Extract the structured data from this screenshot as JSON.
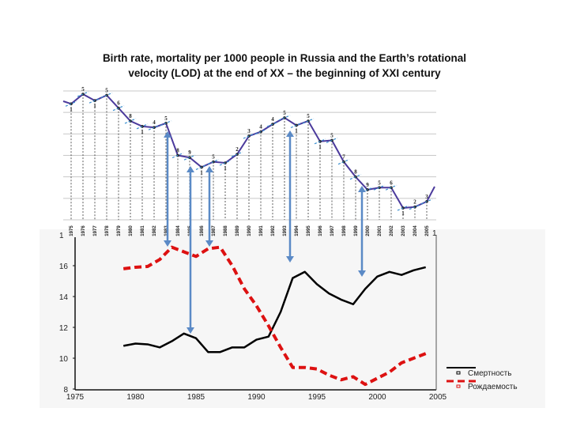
{
  "title": {
    "line1": "Birth rate, mortality per 1000 people in Russia and the Earth’s rotational",
    "line2": "velocity (LOD) at the end of XX – the beginning of XXI century"
  },
  "chart_data": [
    {
      "type": "line",
      "panel": "top",
      "x": [
        1975,
        1976,
        1977,
        1978,
        1979,
        1980,
        1981,
        1982,
        1983,
        1984,
        1985,
        1986,
        1987,
        1988,
        1989,
        1990,
        1991,
        1992,
        1993,
        1994,
        1995,
        1996,
        1997,
        1998,
        1999,
        2000,
        2001,
        2002,
        2003,
        2004,
        2005
      ],
      "x_tick_labels": [
        "1975",
        "1976",
        "1977",
        "1978",
        "1979",
        "1980",
        "1981",
        "1982",
        "1983",
        "1984",
        "1985",
        "1986",
        "1987",
        "1988",
        "1989",
        "1990",
        "1991",
        "1992",
        "1993",
        "1994",
        "1995",
        "1996",
        "1997",
        "1998",
        "1999",
        "2000",
        "2001",
        "2002",
        "2003",
        "2004",
        "2005"
      ],
      "values": [
        5.4,
        5.85,
        5.55,
        5.8,
        5.2,
        4.6,
        4.35,
        4.3,
        4.5,
        3.0,
        2.9,
        2.45,
        2.7,
        2.65,
        3.05,
        3.9,
        4.1,
        4.45,
        4.75,
        4.4,
        4.6,
        3.65,
        3.7,
        2.7,
        2.0,
        1.4,
        1.5,
        1.5,
        0.55,
        0.6,
        0.85
      ],
      "point_labels": [
        "1",
        "5",
        "1",
        "5",
        "6",
        "8",
        "1",
        "4",
        "5",
        "8",
        "9",
        "1",
        "5",
        "1",
        "2",
        "3",
        "4",
        "4",
        "5",
        "1",
        "5",
        "1",
        "5",
        "7",
        "8",
        "9",
        "5",
        "6",
        "1",
        "2",
        "3"
      ],
      "ylim": [
        0,
        6
      ],
      "grid": true,
      "color": "#4b3a9c",
      "marker_color": "#3a8fd0"
    },
    {
      "type": "line",
      "panel": "bottom",
      "xlim": [
        1975,
        2005
      ],
      "ylim": [
        8,
        17.5
      ],
      "x_ticks": [
        "1975",
        "1980",
        "1985",
        "1990",
        "1995",
        "2000",
        "2005"
      ],
      "y_ticks": [
        "8",
        "10",
        "12",
        "14",
        "16"
      ],
      "top_left_label": "1",
      "top_right_label": "1",
      "x": [
        1979,
        1980,
        1981,
        1982,
        1983,
        1984,
        1985,
        1986,
        1987,
        1988,
        1989,
        1990,
        1991,
        1992,
        1993,
        1994,
        1995,
        1996,
        1997,
        1998,
        1999,
        2000,
        2001,
        2002,
        2003,
        2004
      ],
      "series": [
        {
          "name": "Смертность",
          "color": "#000000",
          "style": "solid",
          "values": [
            10.8,
            10.95,
            10.9,
            10.7,
            11.1,
            11.6,
            11.3,
            10.4,
            10.4,
            10.7,
            10.7,
            11.2,
            11.4,
            13.0,
            15.2,
            15.6,
            14.8,
            14.2,
            13.8,
            13.5,
            14.5,
            15.3,
            15.6,
            15.4,
            15.7,
            15.9
          ]
        },
        {
          "name": "Рождаемость",
          "color": "#dd1111",
          "style": "dashed",
          "values": [
            15.8,
            15.9,
            15.95,
            16.4,
            17.2,
            16.9,
            16.6,
            17.1,
            17.2,
            16.0,
            14.5,
            13.4,
            12.1,
            10.7,
            9.4,
            9.4,
            9.3,
            8.9,
            8.6,
            8.8,
            8.3,
            8.7,
            9.1,
            9.7,
            10.0,
            10.3
          ]
        }
      ],
      "legend": "bottom-right"
    }
  ],
  "annotations": {
    "arrow_color": "#5b8ac6",
    "arrow_years": [
      1983,
      1985,
      1987,
      1994,
      2000
    ]
  }
}
